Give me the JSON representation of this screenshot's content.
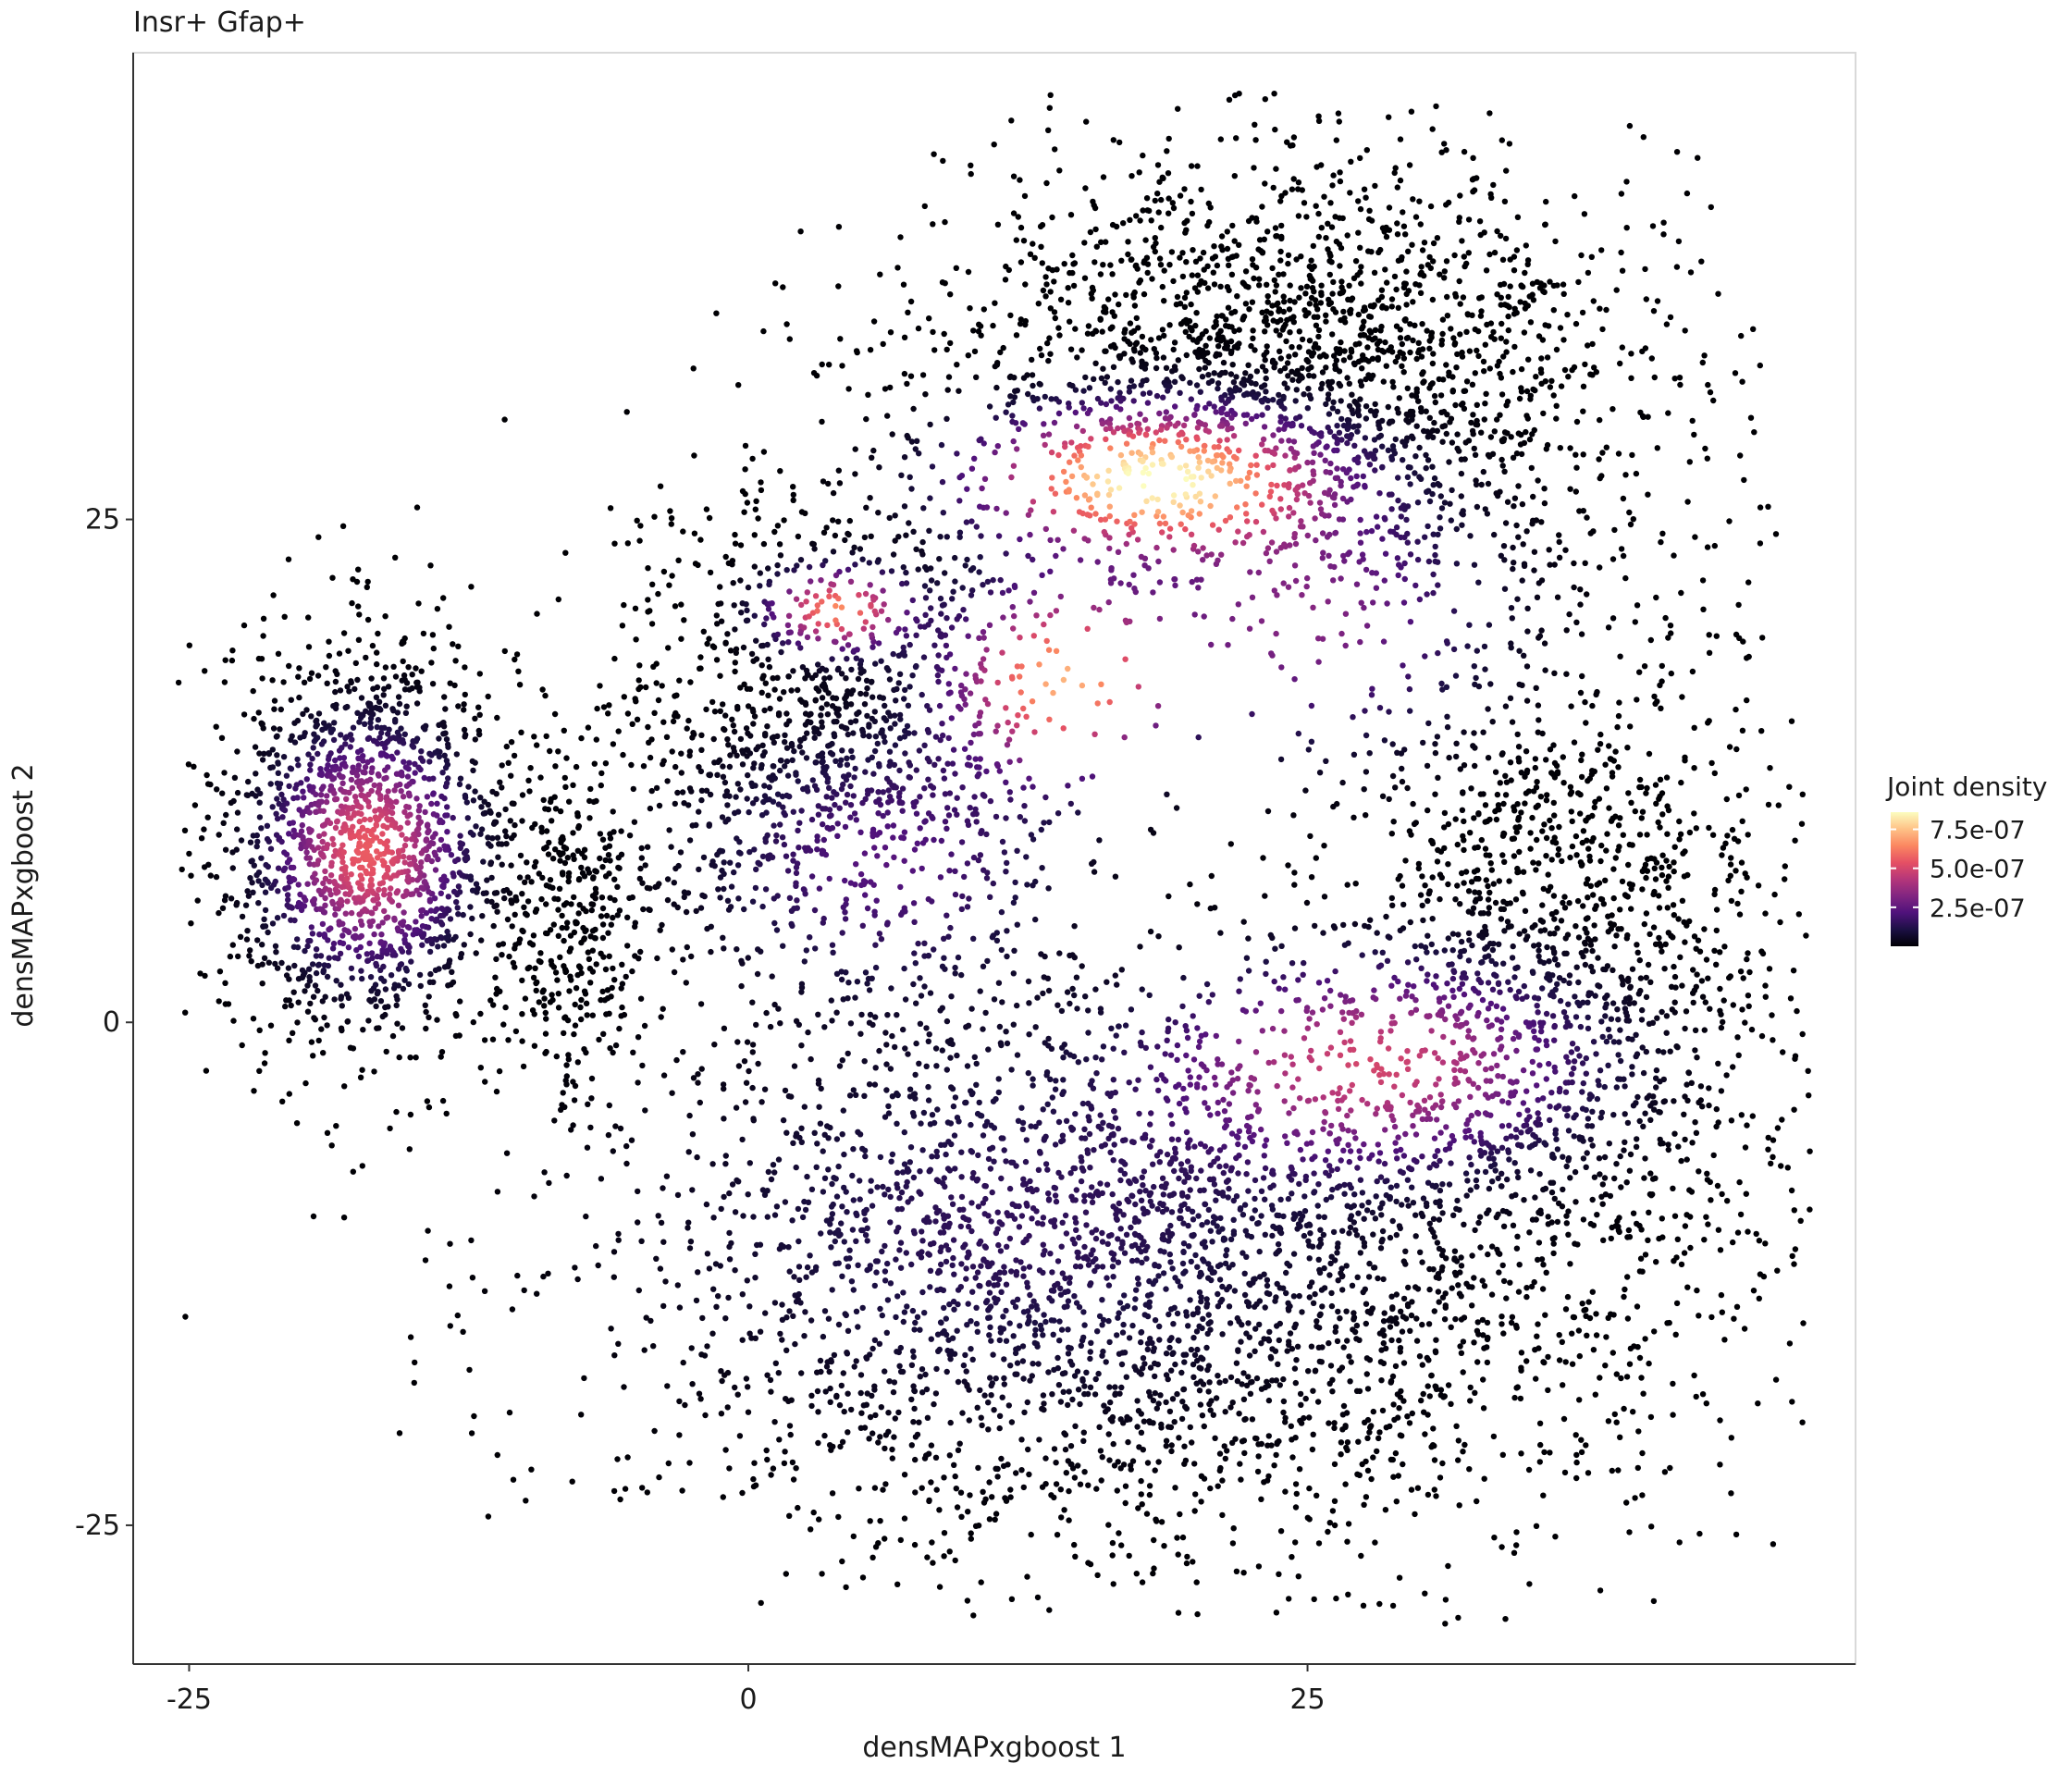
{
  "chart_data": {
    "type": "scatter",
    "title": "Insr+ Gfap+",
    "xlabel": "densMAPxgboost 1",
    "ylabel": "densMAPxgboost 2",
    "xlim": [
      -27.5,
      49.5
    ],
    "ylim": [
      -31.9,
      48.2
    ],
    "xticks": [
      -25,
      0,
      25
    ],
    "yticks": [
      -25,
      0,
      25
    ],
    "xtick_labels": [
      "-25",
      "0",
      "25"
    ],
    "ytick_labels": [
      "-25",
      "0",
      "25"
    ],
    "grid": false,
    "legend": {
      "title": "Joint density",
      "placement": "right",
      "values": [
        2.5e-07,
        5e-07,
        7.5e-07
      ],
      "labels": [
        "2.5e-07",
        "5.0e-07",
        "7.5e-07"
      ],
      "range": [
        0,
        8.6e-07
      ],
      "colormap": [
        "#000004",
        "#1c1044",
        "#4f127b",
        "#812581",
        "#b5367a",
        "#e55064",
        "#fb8761",
        "#fec287",
        "#fcfdbf"
      ]
    },
    "point_color_default": "#000004",
    "clusters": [
      {
        "label": "left cluster",
        "center": [
          -17,
          9
        ],
        "sd": [
          3.3,
          5.0
        ],
        "n": 1600
      },
      {
        "label": "left cluster tail",
        "center": [
          -8,
          5
        ],
        "sd": [
          2.0,
          4.5
        ],
        "n": 350
      },
      {
        "label": "top region",
        "center": [
          24,
          32
        ],
        "sd": [
          8.0,
          5.5
        ],
        "n": 2400
      },
      {
        "label": "upper-left arm",
        "center": [
          4,
          14
        ],
        "sd": [
          5.0,
          6.5
        ],
        "n": 1400
      },
      {
        "label": "lower body",
        "center": [
          17,
          -12
        ],
        "sd": [
          12.0,
          7.5
        ],
        "n": 3400
      },
      {
        "label": "right region",
        "center": [
          36,
          3
        ],
        "sd": [
          5.5,
          9.0
        ],
        "n": 1600
      }
    ],
    "density_hotspots": [
      {
        "x": 18,
        "y": 27,
        "density": 8.6e-07,
        "spread": [
          5.0,
          2.2
        ]
      },
      {
        "x": 14,
        "y": 17,
        "density": 7e-07,
        "spread": [
          3.2,
          3.0
        ]
      },
      {
        "x": 4,
        "y": 20.5,
        "density": 6.5e-07,
        "spread": [
          2.0,
          1.3
        ]
      },
      {
        "x": -17,
        "y": 8.5,
        "density": 5.6e-07,
        "spread": [
          2.6,
          3.5
        ]
      },
      {
        "x": 28,
        "y": -2,
        "density": 4.8e-07,
        "spread": [
          6.0,
          3.2
        ]
      },
      {
        "x": 25,
        "y": 20,
        "density": 3.3e-07,
        "spread": [
          5.0,
          4.0
        ]
      },
      {
        "x": 6,
        "y": 8,
        "density": 2.3e-07,
        "spread": [
          5.0,
          4.0
        ]
      },
      {
        "x": 12,
        "y": -10,
        "density": 1.5e-07,
        "spread": [
          10.0,
          6.0
        ]
      }
    ]
  }
}
